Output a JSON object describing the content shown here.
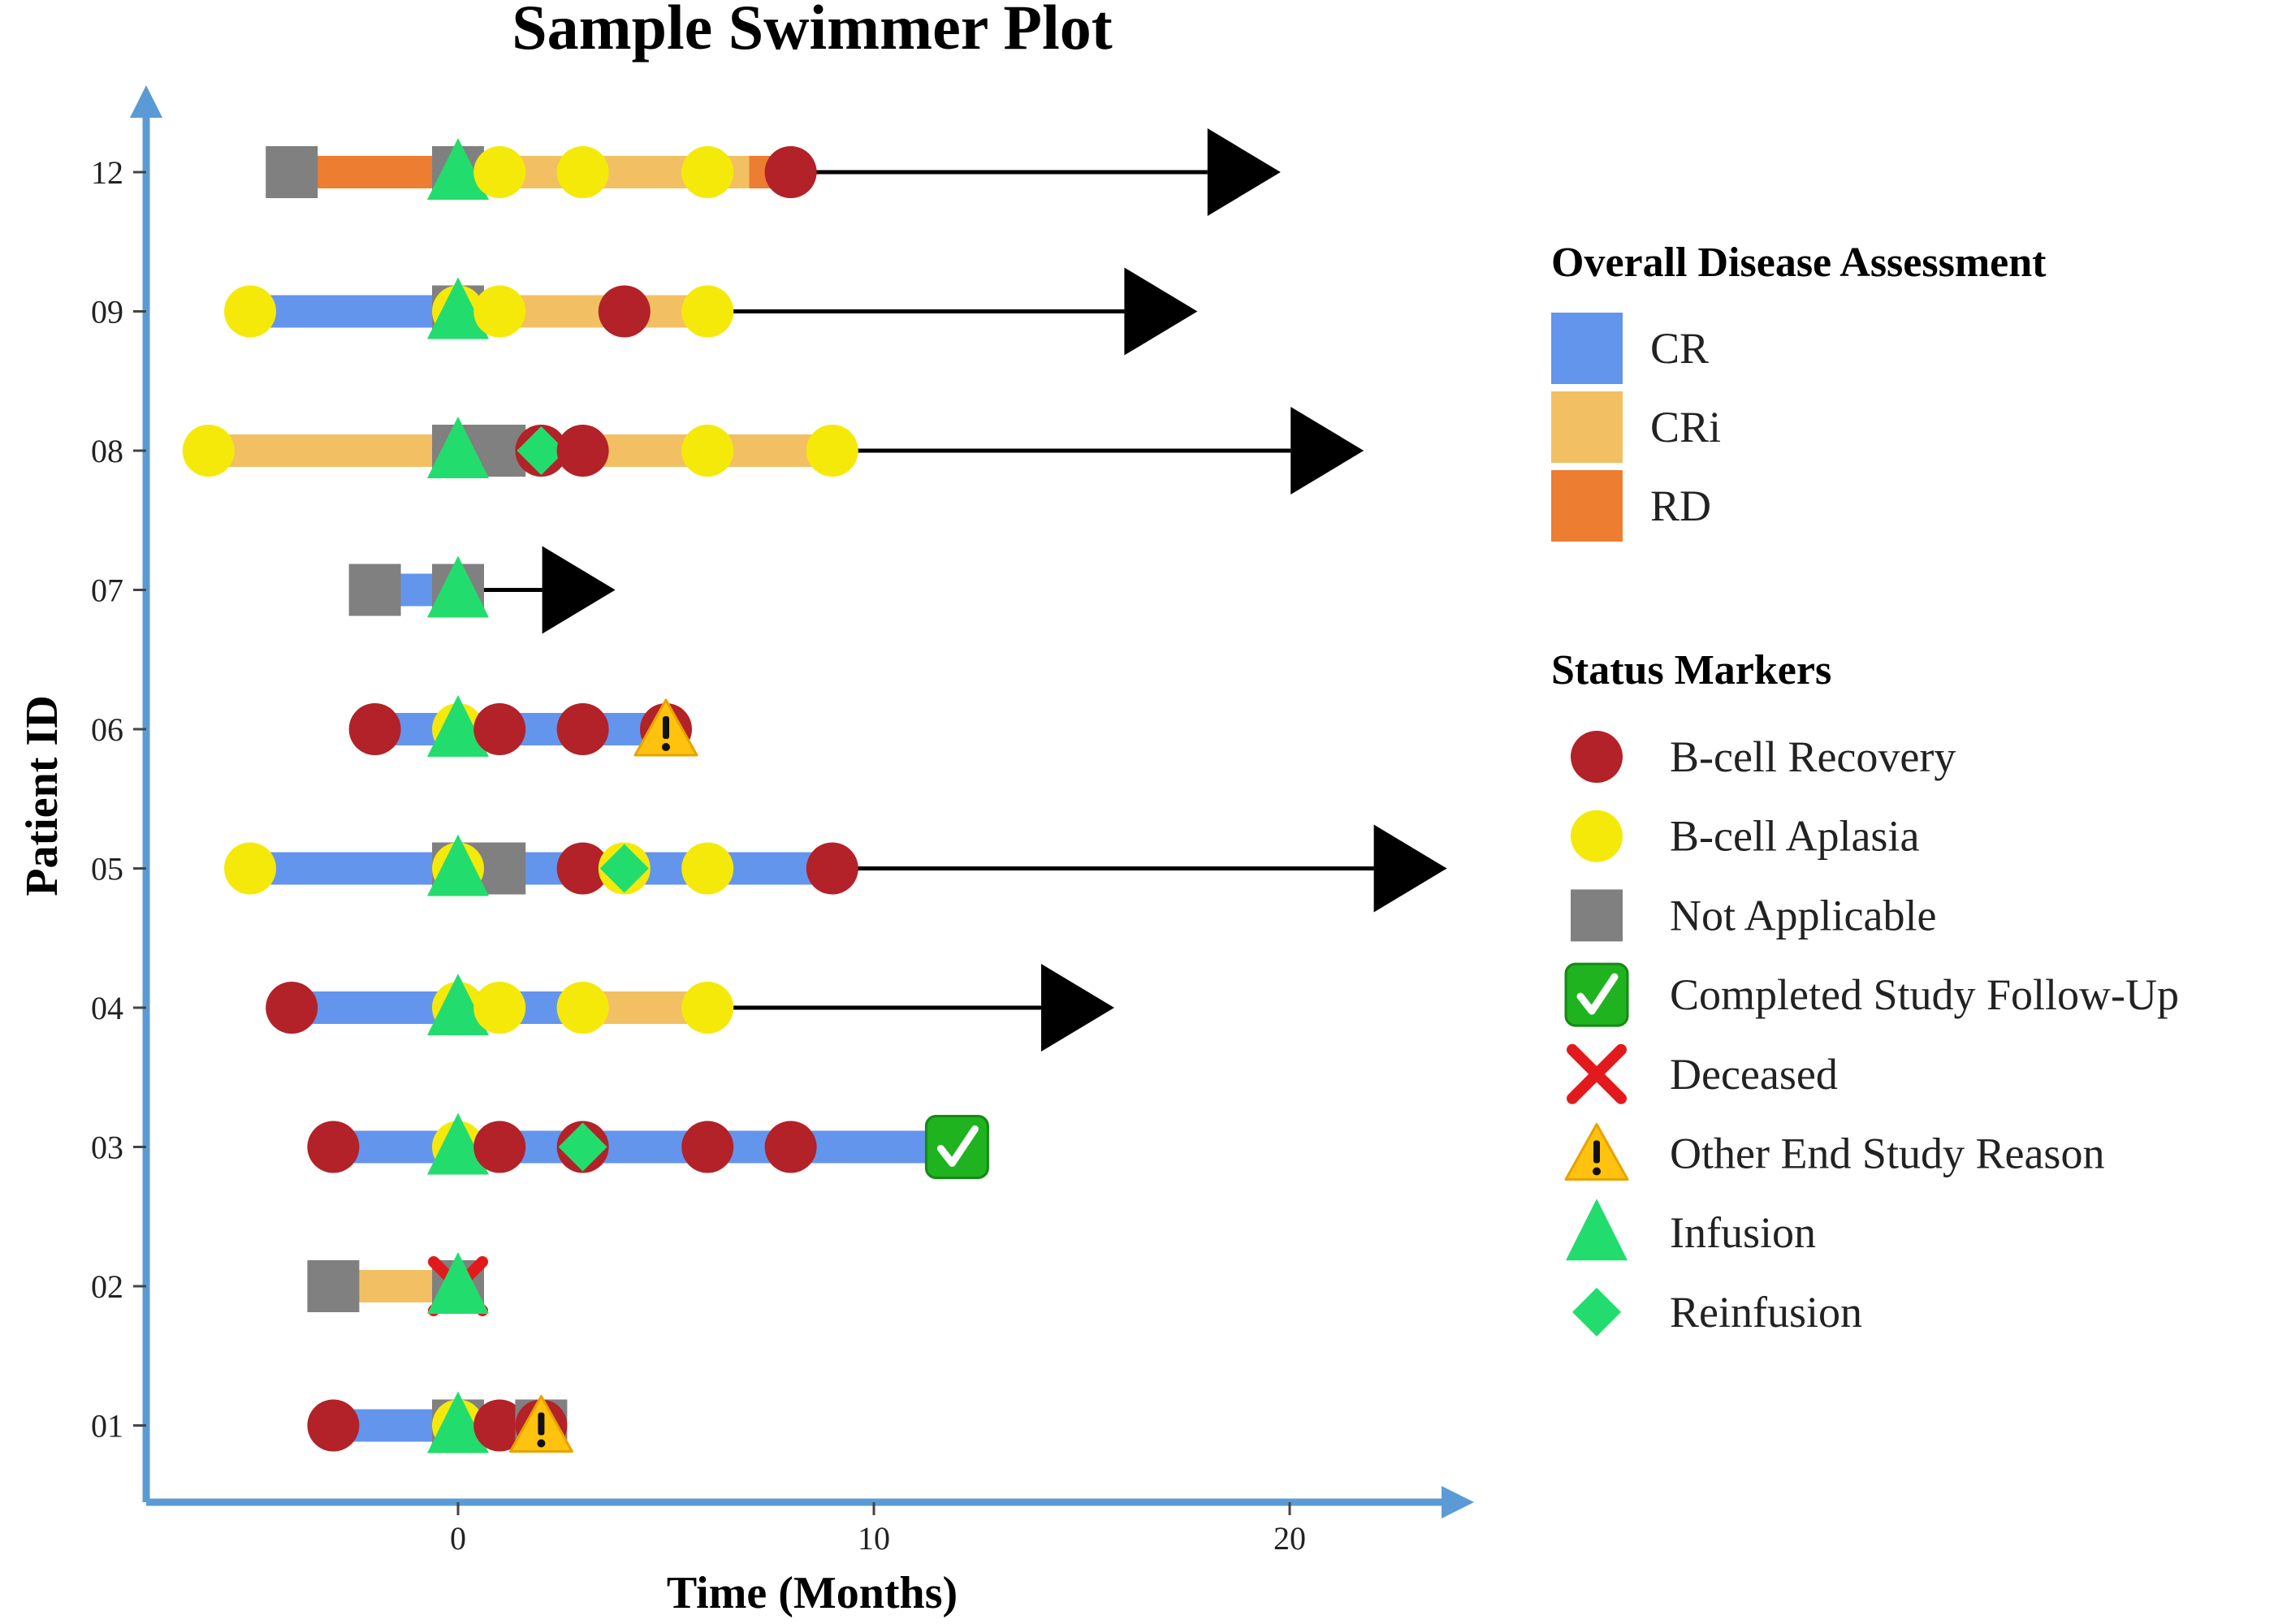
{
  "chart_data": {
    "type": "swimmer",
    "title": "Sample Swimmer Plot",
    "xlabel": "Time (Months)",
    "ylabel": "Patient ID",
    "xlim": [
      -7.5,
      24
    ],
    "x_ticks": [
      0,
      10,
      20
    ],
    "x_tick_labels": [
      "0",
      "10",
      "20"
    ],
    "grid": false,
    "legend_position": "right",
    "colors": {
      "CR": "#6495ED",
      "CRi": "#F2C063",
      "RD": "#ED7D31",
      "B-cell Recovery": "#B22228",
      "B-cell Aplasia": "#F5E90A",
      "Not Applicable": "#808080",
      "Infusion": "#22DD6D",
      "Reinfusion": "#22DD6D",
      "axis": "#5B9BD5"
    },
    "patients": [
      {
        "id": "01",
        "segments": [
          {
            "start": -3,
            "end": 2.5,
            "assessment": "CR"
          }
        ],
        "arrow_end": null,
        "markers": [
          {
            "type": "B-cell Recovery",
            "x": -3
          },
          {
            "type": "Not Applicable",
            "x": 0
          },
          {
            "type": "B-cell Aplasia",
            "x": 0
          },
          {
            "type": "Infusion",
            "x": 0
          },
          {
            "type": "B-cell Recovery",
            "x": 1
          },
          {
            "type": "Not Applicable",
            "x": 2
          },
          {
            "type": "B-cell Recovery",
            "x": 2
          },
          {
            "type": "Other End Study Reason",
            "x": 2
          }
        ]
      },
      {
        "id": "02",
        "segments": [
          {
            "start": -3,
            "end": 0,
            "assessment": "CRi"
          }
        ],
        "arrow_end": null,
        "markers": [
          {
            "type": "Not Applicable",
            "x": -3
          },
          {
            "type": "B-cell Recovery",
            "x": 0
          },
          {
            "type": "Not Applicable",
            "x": 0
          },
          {
            "type": "Deceased",
            "x": 0
          },
          {
            "type": "Infusion",
            "x": 0
          }
        ]
      },
      {
        "id": "03",
        "segments": [
          {
            "start": -3,
            "end": 12,
            "assessment": "CR"
          }
        ],
        "arrow_end": null,
        "markers": [
          {
            "type": "B-cell Recovery",
            "x": -3
          },
          {
            "type": "B-cell Aplasia",
            "x": 0
          },
          {
            "type": "Infusion",
            "x": 0
          },
          {
            "type": "B-cell Recovery",
            "x": 1
          },
          {
            "type": "B-cell Recovery",
            "x": 3
          },
          {
            "type": "Reinfusion",
            "x": 3
          },
          {
            "type": "B-cell Recovery",
            "x": 6
          },
          {
            "type": "B-cell Recovery",
            "x": 8
          },
          {
            "type": "Completed Study Follow-Up",
            "x": 12
          }
        ]
      },
      {
        "id": "04",
        "segments": [
          {
            "start": -4,
            "end": 3,
            "assessment": "CR"
          },
          {
            "start": 3,
            "end": 6,
            "assessment": "CRi"
          }
        ],
        "arrow_end": 15,
        "markers": [
          {
            "type": "B-cell Recovery",
            "x": -4
          },
          {
            "type": "B-cell Aplasia",
            "x": 0
          },
          {
            "type": "Infusion",
            "x": 0
          },
          {
            "type": "B-cell Aplasia",
            "x": 1
          },
          {
            "type": "B-cell Aplasia",
            "x": 3
          },
          {
            "type": "B-cell Aplasia",
            "x": 6
          }
        ]
      },
      {
        "id": "05",
        "segments": [
          {
            "start": -5,
            "end": 9,
            "assessment": "CR"
          }
        ],
        "arrow_end": 23,
        "markers": [
          {
            "type": "B-cell Aplasia",
            "x": -5
          },
          {
            "type": "Not Applicable",
            "x": 0
          },
          {
            "type": "Not Applicable",
            "x": 1
          },
          {
            "type": "B-cell Aplasia",
            "x": 0
          },
          {
            "type": "Infusion",
            "x": 0
          },
          {
            "type": "B-cell Recovery",
            "x": 3
          },
          {
            "type": "B-cell Aplasia",
            "x": 4
          },
          {
            "type": "Reinfusion",
            "x": 4
          },
          {
            "type": "B-cell Aplasia",
            "x": 6
          },
          {
            "type": "B-cell Recovery",
            "x": 9
          }
        ]
      },
      {
        "id": "06",
        "segments": [
          {
            "start": -2,
            "end": 5,
            "assessment": "CR"
          }
        ],
        "arrow_end": null,
        "markers": [
          {
            "type": "B-cell Recovery",
            "x": -2
          },
          {
            "type": "B-cell Aplasia",
            "x": 0
          },
          {
            "type": "Infusion",
            "x": 0
          },
          {
            "type": "B-cell Recovery",
            "x": 1
          },
          {
            "type": "B-cell Recovery",
            "x": 3
          },
          {
            "type": "B-cell Recovery",
            "x": 5
          },
          {
            "type": "Other End Study Reason",
            "x": 5
          }
        ]
      },
      {
        "id": "07",
        "segments": [
          {
            "start": -2,
            "end": 0.5,
            "assessment": "CR"
          }
        ],
        "arrow_end": 3,
        "markers": [
          {
            "type": "Not Applicable",
            "x": -2
          },
          {
            "type": "Not Applicable",
            "x": 0
          },
          {
            "type": "Infusion",
            "x": 0
          }
        ]
      },
      {
        "id": "08",
        "segments": [
          {
            "start": -6,
            "end": 9,
            "assessment": "CRi"
          }
        ],
        "arrow_end": 21,
        "markers": [
          {
            "type": "B-cell Aplasia",
            "x": -6
          },
          {
            "type": "B-cell Recovery",
            "x": 0
          },
          {
            "type": "Not Applicable",
            "x": 0
          },
          {
            "type": "Not Applicable",
            "x": 1
          },
          {
            "type": "Infusion",
            "x": 0
          },
          {
            "type": "B-cell Recovery",
            "x": 2
          },
          {
            "type": "Reinfusion",
            "x": 2
          },
          {
            "type": "B-cell Recovery",
            "x": 3
          },
          {
            "type": "B-cell Aplasia",
            "x": 6
          },
          {
            "type": "B-cell Aplasia",
            "x": 9
          }
        ]
      },
      {
        "id": "09",
        "segments": [
          {
            "start": -5,
            "end": 0,
            "assessment": "CR"
          },
          {
            "start": 0,
            "end": 6,
            "assessment": "CRi"
          }
        ],
        "arrow_end": 17,
        "markers": [
          {
            "type": "B-cell Aplasia",
            "x": -5
          },
          {
            "type": "Not Applicable",
            "x": 0
          },
          {
            "type": "B-cell Aplasia",
            "x": 0
          },
          {
            "type": "Infusion",
            "x": 0
          },
          {
            "type": "B-cell Aplasia",
            "x": 1
          },
          {
            "type": "B-cell Recovery",
            "x": 4
          },
          {
            "type": "B-cell Aplasia",
            "x": 6
          }
        ]
      },
      {
        "id": "12",
        "segments": [
          {
            "start": -4,
            "end": 0,
            "assessment": "RD"
          },
          {
            "start": 0,
            "end": 7,
            "assessment": "CRi"
          },
          {
            "start": 7,
            "end": 8,
            "assessment": "RD"
          }
        ],
        "arrow_end": 19,
        "markers": [
          {
            "type": "Not Applicable",
            "x": -4
          },
          {
            "type": "Not Applicable",
            "x": 0
          },
          {
            "type": "Infusion",
            "x": 0
          },
          {
            "type": "B-cell Aplasia",
            "x": 1
          },
          {
            "type": "B-cell Aplasia",
            "x": 3
          },
          {
            "type": "B-cell Aplasia",
            "x": 6
          },
          {
            "type": "B-cell Recovery",
            "x": 8
          }
        ]
      }
    ],
    "legend": {
      "assessment_title": "Overall Disease Assessment",
      "assessment_items": [
        "CR",
        "CRi",
        "RD"
      ],
      "status_title": "Status Markers",
      "status_items": [
        "B-cell Recovery",
        "B-cell Aplasia",
        "Not Applicable",
        "Completed Study Follow-Up",
        "Deceased",
        "Other End Study Reason",
        "Infusion",
        "Reinfusion"
      ]
    }
  }
}
